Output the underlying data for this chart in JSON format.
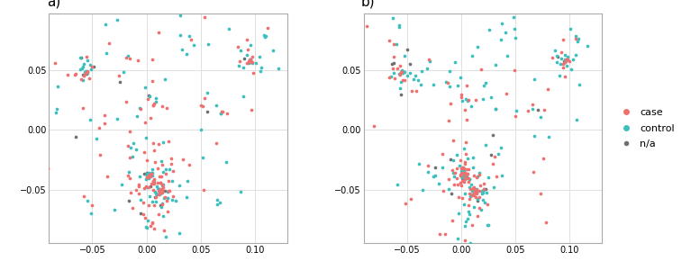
{
  "title_a": "a)",
  "title_b": "b)",
  "colors": {
    "case": "#F07070",
    "control": "#3CBFBF",
    "na": "#707070"
  },
  "xlim": [
    -0.09,
    0.13
  ],
  "ylim": [
    -0.095,
    0.098
  ],
  "xticks": [
    -0.05,
    0.0,
    0.05,
    0.1
  ],
  "yticks": [
    -0.05,
    0.0,
    0.05
  ],
  "background": "#ffffff",
  "grid_color": "#e0e0e0",
  "figsize": [
    7.77,
    3.0
  ],
  "dpi": 100,
  "point_size": 7,
  "legend_fontsize": 8
}
